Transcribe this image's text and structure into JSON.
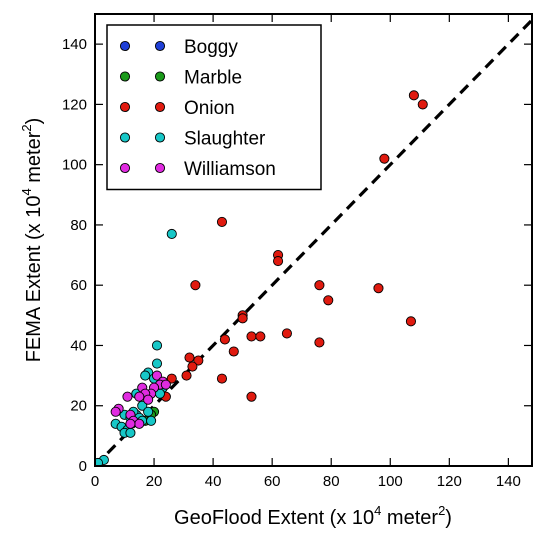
{
  "chart_data": {
    "type": "scatter",
    "xlabel_parts": [
      "GeoFlood Extent (x 10",
      "4",
      " meter",
      "2",
      ")"
    ],
    "ylabel_parts": [
      "FEMA Extent (x 10",
      "4",
      " meter",
      "2",
      ")"
    ],
    "xlim": [
      0,
      148
    ],
    "ylim": [
      0,
      150
    ],
    "xticks": [
      0,
      20,
      40,
      60,
      80,
      100,
      120,
      140
    ],
    "yticks": [
      0,
      20,
      40,
      60,
      80,
      100,
      120,
      140
    ],
    "xtick_labels": [
      "0",
      "20",
      "40",
      "60",
      "80",
      "100",
      "120",
      "140"
    ],
    "ytick_labels": [
      "0",
      "20",
      "40",
      "60",
      "80",
      "100",
      "120",
      "140"
    ],
    "grid": false,
    "legend_position": "top-left",
    "reference_line": {
      "style": "dashed",
      "color": "#000000",
      "x": [
        0,
        148
      ],
      "y": [
        0,
        148
      ]
    },
    "series": [
      {
        "name": "Boggy",
        "color": "#1f3fd6",
        "points": []
      },
      {
        "name": "Marble",
        "color": "#1a9a1a",
        "points": [
          [
            20,
            18
          ],
          [
            17,
            15
          ],
          [
            19,
            17
          ]
        ]
      },
      {
        "name": "Onion",
        "color": "#e01a0f",
        "points": [
          [
            108,
            123
          ],
          [
            111,
            120
          ],
          [
            98,
            102
          ],
          [
            43,
            81
          ],
          [
            62,
            70
          ],
          [
            62,
            68
          ],
          [
            34,
            60
          ],
          [
            76,
            60
          ],
          [
            96,
            59
          ],
          [
            79,
            55
          ],
          [
            50,
            50
          ],
          [
            50,
            49
          ],
          [
            107,
            48
          ],
          [
            65,
            44
          ],
          [
            53,
            43
          ],
          [
            56,
            43
          ],
          [
            44,
            42
          ],
          [
            76,
            41
          ],
          [
            35,
            35
          ],
          [
            33,
            33
          ],
          [
            47,
            38
          ],
          [
            32,
            36
          ],
          [
            31,
            30
          ],
          [
            43,
            29
          ],
          [
            26,
            29
          ],
          [
            53,
            23
          ],
          [
            24,
            23
          ]
        ]
      },
      {
        "name": "Slaughter",
        "color": "#17c7c7",
        "points": [
          [
            26,
            77
          ],
          [
            21,
            40
          ],
          [
            21,
            34
          ],
          [
            18,
            31
          ],
          [
            17,
            30
          ],
          [
            20,
            29
          ],
          [
            23,
            26
          ],
          [
            22,
            24
          ],
          [
            14,
            24
          ],
          [
            16,
            20
          ],
          [
            18,
            18
          ],
          [
            14,
            17
          ],
          [
            13,
            18
          ],
          [
            10,
            17
          ],
          [
            15,
            16
          ],
          [
            12,
            16
          ],
          [
            7,
            14
          ],
          [
            9,
            13
          ],
          [
            11,
            12
          ],
          [
            10,
            11
          ],
          [
            12,
            11
          ],
          [
            16,
            15
          ],
          [
            19,
            15
          ],
          [
            3,
            2
          ],
          [
            1,
            1
          ]
        ]
      },
      {
        "name": "Williamson",
        "color": "#e02be0",
        "points": [
          [
            21,
            30
          ],
          [
            23,
            28
          ],
          [
            22,
            27
          ],
          [
            20,
            26
          ],
          [
            24,
            27
          ],
          [
            16,
            26
          ],
          [
            19,
            24
          ],
          [
            17,
            24
          ],
          [
            18,
            22
          ],
          [
            15,
            23
          ],
          [
            11,
            23
          ],
          [
            8,
            19
          ],
          [
            7,
            18
          ],
          [
            12,
            17
          ],
          [
            13,
            15
          ],
          [
            15,
            14
          ],
          [
            12,
            14
          ]
        ]
      }
    ]
  }
}
